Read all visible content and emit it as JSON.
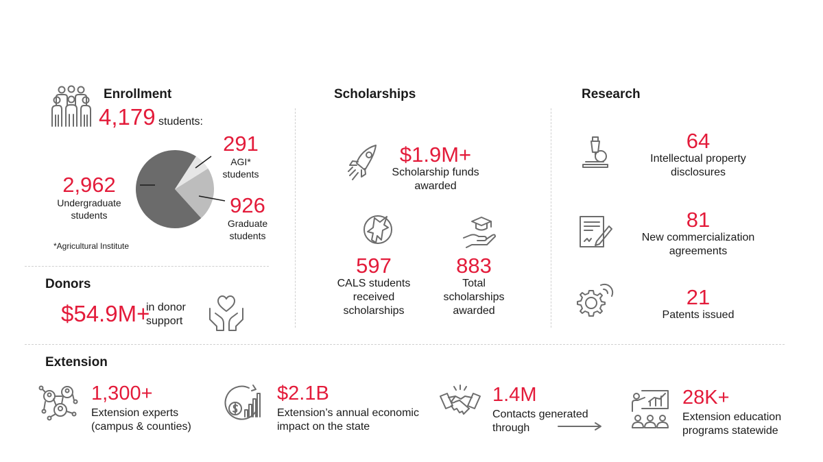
{
  "enrollment": {
    "title": "Enrollment",
    "total": "4,179",
    "total_suffix": "students:",
    "icon": "people-group-icon",
    "footnote": "*Agricultural Institute"
  },
  "chart_data": {
    "type": "pie",
    "slices": [
      {
        "label": "Undergraduate students",
        "value_label": "2,962",
        "value": 2962,
        "color": "#6b6b6b"
      },
      {
        "label": "AGI* students",
        "value_label": "291",
        "value": 291,
        "color": "#e6e6e6"
      },
      {
        "label": "Graduate students",
        "value_label": "926",
        "value": 926,
        "color": "#bdbdbd"
      }
    ]
  },
  "donors": {
    "title": "Donors",
    "value": "$54.9M+",
    "text": "in donor support",
    "icon": "hands-heart-icon"
  },
  "scholarships": {
    "title": "Scholarships",
    "funds": {
      "value": "$1.9M+",
      "text": "Scholarship funds awarded",
      "icon": "rocket-icon"
    },
    "students": {
      "value": "597",
      "text": "CALS students received scholarships",
      "icon": "wolf-icon"
    },
    "total": {
      "value": "883",
      "text": "Total scholarships awarded",
      "icon": "graduation-hand-icon"
    }
  },
  "research": {
    "title": "Research",
    "items": [
      {
        "value": "64",
        "text": "Intellectual property disclosures",
        "icon": "microscope-icon"
      },
      {
        "value": "81",
        "text": "New commercialization agreements",
        "icon": "document-sign-icon"
      },
      {
        "value": "21",
        "text": "Patents issued",
        "icon": "gears-icon"
      }
    ]
  },
  "extension": {
    "title": "Extension",
    "items": [
      {
        "value": "1,300+",
        "text": "Extension experts (campus & counties)",
        "icon": "network-people-icon"
      },
      {
        "value": "$2.1B",
        "text": "Extension’s annual economic impact on the state",
        "icon": "economic-growth-icon"
      },
      {
        "value": "1.4M",
        "text": "Contacts generated through",
        "icon": "handshake-icon"
      },
      {
        "value": "28K+",
        "text": "Extension education programs statewide",
        "icon": "presentation-icon"
      }
    ]
  }
}
